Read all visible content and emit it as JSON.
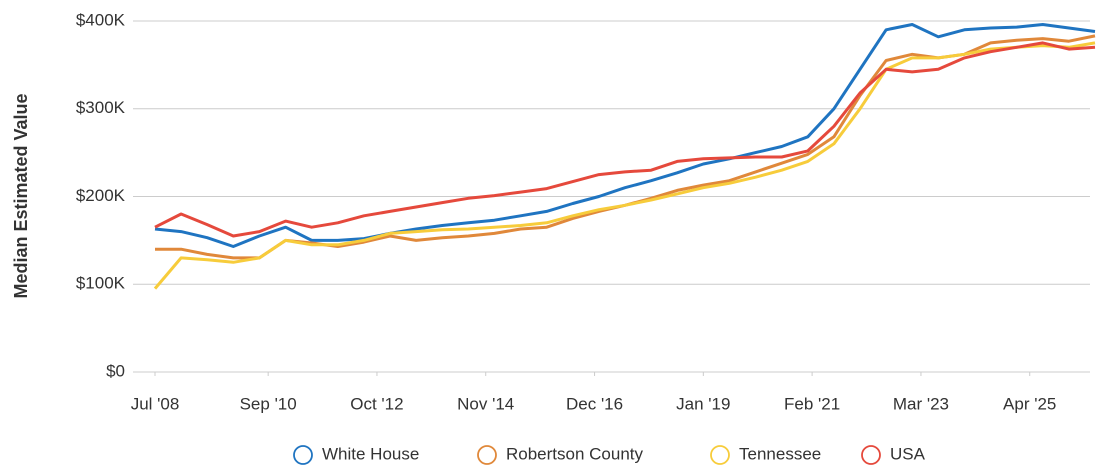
{
  "chart_data": {
    "type": "line",
    "y_label": "Median Estimated Value",
    "x": [
      2008.5,
      2009.0,
      2009.5,
      2010.0,
      2010.5,
      2011.0,
      2011.5,
      2012.0,
      2012.5,
      2013.0,
      2013.5,
      2014.0,
      2014.5,
      2015.0,
      2015.5,
      2016.0,
      2016.5,
      2017.0,
      2017.5,
      2018.0,
      2018.5,
      2019.0,
      2019.5,
      2020.0,
      2020.5,
      2021.0,
      2021.5,
      2022.0,
      2022.5,
      2023.0,
      2023.5,
      2024.0,
      2024.5,
      2025.0,
      2025.5,
      2026.0,
      2026.5
    ],
    "series": [
      {
        "name": "White House",
        "color": "#1f74c1",
        "values": [
          163000,
          160000,
          153000,
          143000,
          155000,
          165000,
          150000,
          150000,
          152000,
          158000,
          163000,
          167000,
          170000,
          173000,
          178000,
          183000,
          192000,
          200000,
          210000,
          218000,
          227000,
          237000,
          243000,
          250000,
          257000,
          268000,
          300000,
          345000,
          390000,
          396000,
          382000,
          390000,
          392000,
          393000,
          396000,
          392000,
          388000
        ]
      },
      {
        "name": "Robertson County",
        "color": "#e0883a",
        "values": [
          140000,
          140000,
          134000,
          130000,
          130000,
          150000,
          147000,
          143000,
          148000,
          155000,
          150000,
          153000,
          155000,
          158000,
          163000,
          165000,
          175000,
          183000,
          190000,
          198000,
          207000,
          213000,
          218000,
          228000,
          238000,
          248000,
          268000,
          315000,
          355000,
          362000,
          358000,
          362000,
          375000,
          378000,
          380000,
          377000,
          383000
        ]
      },
      {
        "name": "Tennessee",
        "color": "#f7cc3b",
        "values": [
          95000,
          130000,
          128000,
          125000,
          130000,
          150000,
          145000,
          145000,
          150000,
          158000,
          160000,
          162000,
          163000,
          165000,
          167000,
          170000,
          178000,
          185000,
          190000,
          196000,
          203000,
          210000,
          215000,
          222000,
          230000,
          240000,
          260000,
          300000,
          345000,
          358000,
          358000,
          362000,
          368000,
          370000,
          372000,
          370000,
          375000
        ]
      },
      {
        "name": "USA",
        "color": "#e5493c",
        "values": [
          165000,
          180000,
          168000,
          155000,
          160000,
          172000,
          165000,
          170000,
          178000,
          183000,
          188000,
          193000,
          198000,
          201000,
          205000,
          209000,
          217000,
          225000,
          228000,
          230000,
          240000,
          243000,
          244000,
          245000,
          245000,
          252000,
          280000,
          318000,
          345000,
          342000,
          345000,
          358000,
          365000,
          370000,
          375000,
          368000,
          370000
        ]
      }
    ],
    "xlim": [
      2008.5,
      2026.5
    ],
    "xticks": [
      {
        "value": 2008.5,
        "label": "Jul '08"
      },
      {
        "value": 2010.667,
        "label": "Sep '10"
      },
      {
        "value": 2012.75,
        "label": "Oct '12"
      },
      {
        "value": 2014.833,
        "label": "Nov '14"
      },
      {
        "value": 2016.917,
        "label": "Dec '16"
      },
      {
        "value": 2019.0,
        "label": "Jan '19"
      },
      {
        "value": 2021.083,
        "label": "Feb '21"
      },
      {
        "value": 2023.167,
        "label": "Mar '23"
      },
      {
        "value": 2025.25,
        "label": "Apr '25"
      }
    ],
    "ylim": [
      0,
      400000
    ],
    "yticks": [
      {
        "value": 0,
        "label": "$0"
      },
      {
        "value": 100000,
        "label": "$100K"
      },
      {
        "value": 200000,
        "label": "$200K"
      },
      {
        "value": 300000,
        "label": "$300K"
      },
      {
        "value": 400000,
        "label": "$400K"
      }
    ],
    "grid": true,
    "legend": "bottom"
  }
}
